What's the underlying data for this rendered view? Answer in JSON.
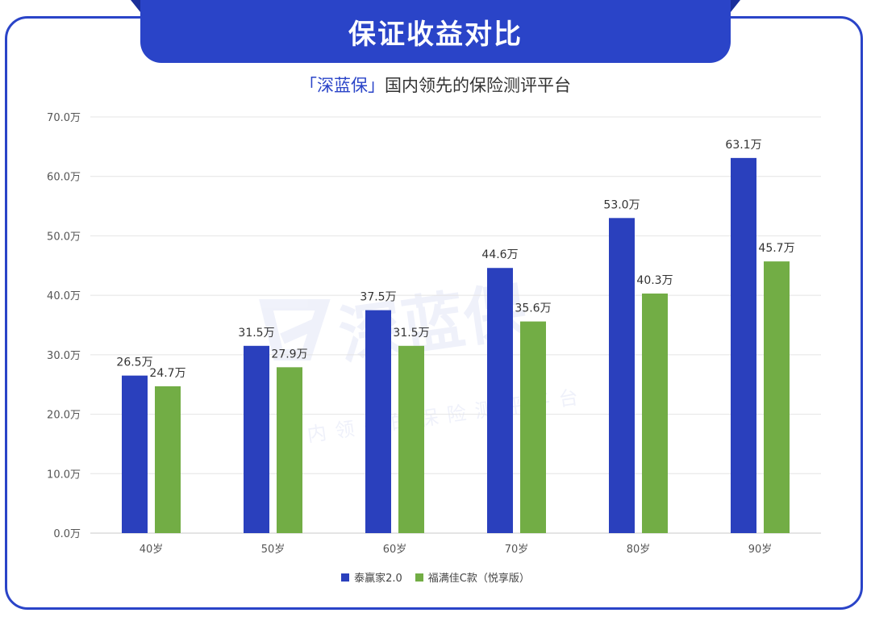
{
  "header": {
    "title": "保证收益对比",
    "subtitle_brand": "「深蓝保」",
    "subtitle_rest": "国内领先的保险测评平台"
  },
  "watermark": {
    "brand": "深蓝保",
    "tagline": "国内领先的保险测评平台"
  },
  "colors": {
    "accent": "#2a44c8",
    "series1": "#2a40bd",
    "series2": "#72ad45"
  },
  "chart_data": {
    "type": "bar",
    "categories": [
      "40岁",
      "50岁",
      "60岁",
      "70岁",
      "80岁",
      "90岁"
    ],
    "series": [
      {
        "name": "泰赢家2.0",
        "values": [
          26.5,
          31.5,
          37.5,
          44.6,
          53.0,
          63.1
        ],
        "labels": [
          "26.5万",
          "31.5万",
          "37.5万",
          "44.6万",
          "53.0万",
          "63.1万"
        ]
      },
      {
        "name": "福满佳C款（悦享版）",
        "values": [
          24.7,
          27.9,
          31.5,
          35.6,
          40.3,
          45.7
        ],
        "labels": [
          "24.7万",
          "27.9万",
          "31.5万",
          "35.6万",
          "40.3万",
          "45.7万"
        ]
      }
    ],
    "yticks": [
      "0.0万",
      "10.0万",
      "20.0万",
      "30.0万",
      "40.0万",
      "50.0万",
      "60.0万",
      "70.0万"
    ],
    "ylim": [
      0,
      70
    ],
    "grid": true,
    "legend_position": "bottom"
  }
}
